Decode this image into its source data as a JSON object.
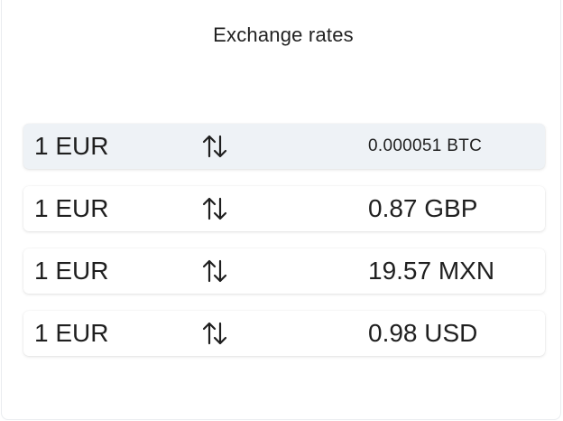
{
  "header": {
    "title": "Exchange rates"
  },
  "icons": {
    "swap": "swap-vertical-arrows-icon"
  },
  "colors": {
    "selected_row_bg": "#eef2f6",
    "text": "#1f1f1f"
  },
  "rates": [
    {
      "from": "1 EUR",
      "to": "0.000051 BTC",
      "selected": true
    },
    {
      "from": "1 EUR",
      "to": "0.87 GBP",
      "selected": false
    },
    {
      "from": "1 EUR",
      "to": "19.57 MXN",
      "selected": false
    },
    {
      "from": "1 EUR",
      "to": "0.98 USD",
      "selected": false
    }
  ]
}
